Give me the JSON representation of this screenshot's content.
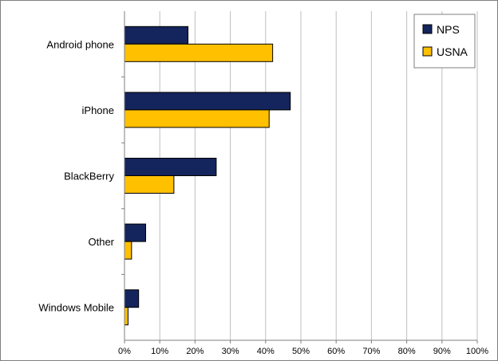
{
  "chart_data": {
    "type": "bar",
    "orientation": "horizontal",
    "categories": [
      "Android phone",
      "iPhone",
      "BlackBerry",
      "Other",
      "Windows Mobile"
    ],
    "series": [
      {
        "name": "NPS",
        "values": [
          18,
          47,
          26,
          6,
          4
        ],
        "color": "#14245c"
      },
      {
        "name": "USNA",
        "values": [
          42,
          41,
          14,
          2,
          1
        ],
        "color": "#ffc000"
      }
    ],
    "xlim": [
      0,
      100
    ],
    "x_ticks": [
      "0%",
      "10%",
      "20%",
      "30%",
      "40%",
      "50%",
      "60%",
      "70%",
      "80%",
      "90%",
      "100%"
    ],
    "grid": "vertical",
    "legend_position": "top-right",
    "title": "",
    "xlabel": "",
    "ylabel": ""
  }
}
